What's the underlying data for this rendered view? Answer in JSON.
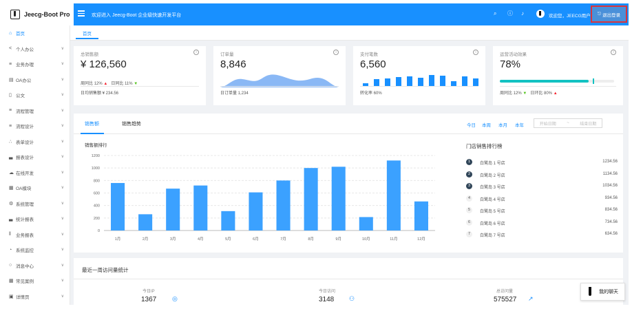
{
  "header": {
    "app_title": "Jeecg-Boot Pro",
    "welcome": "欢迎进入 Jeecg-Boot 企业级快速开发平台",
    "user_greeting": "欢迎您，JEECG用户",
    "logout_label": "退出登录",
    "icons": [
      "search-icon",
      "question-icon",
      "bell-icon"
    ]
  },
  "sidebar": {
    "items": [
      {
        "label": "首页",
        "icon": "home-icon",
        "active": true
      },
      {
        "label": "个人办公",
        "icon": "share-icon"
      },
      {
        "label": "业务办理",
        "icon": "flow-icon"
      },
      {
        "label": "OA办公",
        "icon": "document-icon"
      },
      {
        "label": "公文",
        "icon": "file-icon"
      },
      {
        "label": "流程管理",
        "icon": "flow-icon"
      },
      {
        "label": "流程设计",
        "icon": "flow-icon"
      },
      {
        "label": "表单设计",
        "icon": "cluster-icon"
      },
      {
        "label": "报表设计",
        "icon": "bar-chart-icon"
      },
      {
        "label": "在线开发",
        "icon": "cloud-icon"
      },
      {
        "label": "OA模块",
        "icon": "table-icon"
      },
      {
        "label": "系统管理",
        "icon": "setting-icon"
      },
      {
        "label": "统计报表",
        "icon": "bar-chart-icon"
      },
      {
        "label": "业务报表",
        "icon": "column-icon"
      },
      {
        "label": "系统监控",
        "icon": "dashboard-icon"
      },
      {
        "label": "消息中心",
        "icon": "message-icon"
      },
      {
        "label": "常见案例",
        "icon": "table-icon"
      },
      {
        "label": "详情页",
        "icon": "profile-icon"
      }
    ]
  },
  "tabs": [
    {
      "label": "首页"
    }
  ],
  "stats": {
    "total_sales": {
      "title": "总销售额",
      "value": "¥ 126,560",
      "wow_label": "周同比",
      "wow_value": "12%",
      "dod_label": "日同比",
      "dod_value": "11%",
      "footer": "日均销售额 ¥ 234.56"
    },
    "orders": {
      "title": "订单量",
      "value": "8,846",
      "footer": "日订单量 1,234"
    },
    "payments": {
      "title": "支付笔数",
      "value": "6,560",
      "footer": "转化率 60%"
    },
    "campaign": {
      "title": "运营活动效果",
      "value": "78%",
      "progress": 0.78,
      "footer": "周同比 12%",
      "footer2": "日环比 80%"
    }
  },
  "sales_panel": {
    "tab_sales": "销售额",
    "tab_trend": "销售趋势",
    "ranges": [
      "今日",
      "本周",
      "本月",
      "本年"
    ],
    "start_placeholder": "开始日期",
    "arrow": "~",
    "end_placeholder": "结束日期",
    "chart_title": "销售额排行",
    "rank_title": "门店销售排行榜",
    "ranking": [
      {
        "name": "白鹭岛 1 号店",
        "value": "1234.56"
      },
      {
        "name": "白鹭岛 2 号店",
        "value": "1134.56"
      },
      {
        "name": "白鹭岛 3 号店",
        "value": "1034.56"
      },
      {
        "name": "白鹭岛 4 号店",
        "value": "934.56"
      },
      {
        "name": "白鹭岛 5 号店",
        "value": "834.56"
      },
      {
        "name": "白鹭岛 6 号店",
        "value": "734.56"
      },
      {
        "name": "白鹭岛 7 号店",
        "value": "634.56"
      }
    ]
  },
  "chart_data": {
    "type": "bar",
    "title": "销售额排行",
    "categories": [
      "1月",
      "2月",
      "3月",
      "4月",
      "5月",
      "6月",
      "7月",
      "8月",
      "9月",
      "10月",
      "11月",
      "12月"
    ],
    "values": [
      760,
      260,
      670,
      720,
      310,
      610,
      800,
      1000,
      1020,
      215,
      1120,
      465
    ],
    "ylim": [
      0,
      1200
    ],
    "yticks": [
      0,
      200,
      400,
      600,
      800,
      1000,
      1200
    ],
    "color": "#3ba1ff"
  },
  "visit_panel": {
    "title": "最近一周访问量统计",
    "items": [
      {
        "label": "今日IP",
        "value": "1367",
        "icon": "environment-icon"
      },
      {
        "label": "今日访问",
        "value": "3148",
        "icon": "team-icon"
      },
      {
        "label": "总访问量",
        "value": "575527",
        "icon": "rise-icon"
      }
    ]
  },
  "chat": {
    "label": "我的聊天"
  },
  "colors": {
    "primary": "#1890ff",
    "up": "#f5222d",
    "down": "#52c41a",
    "progress": "#13c2c2"
  }
}
